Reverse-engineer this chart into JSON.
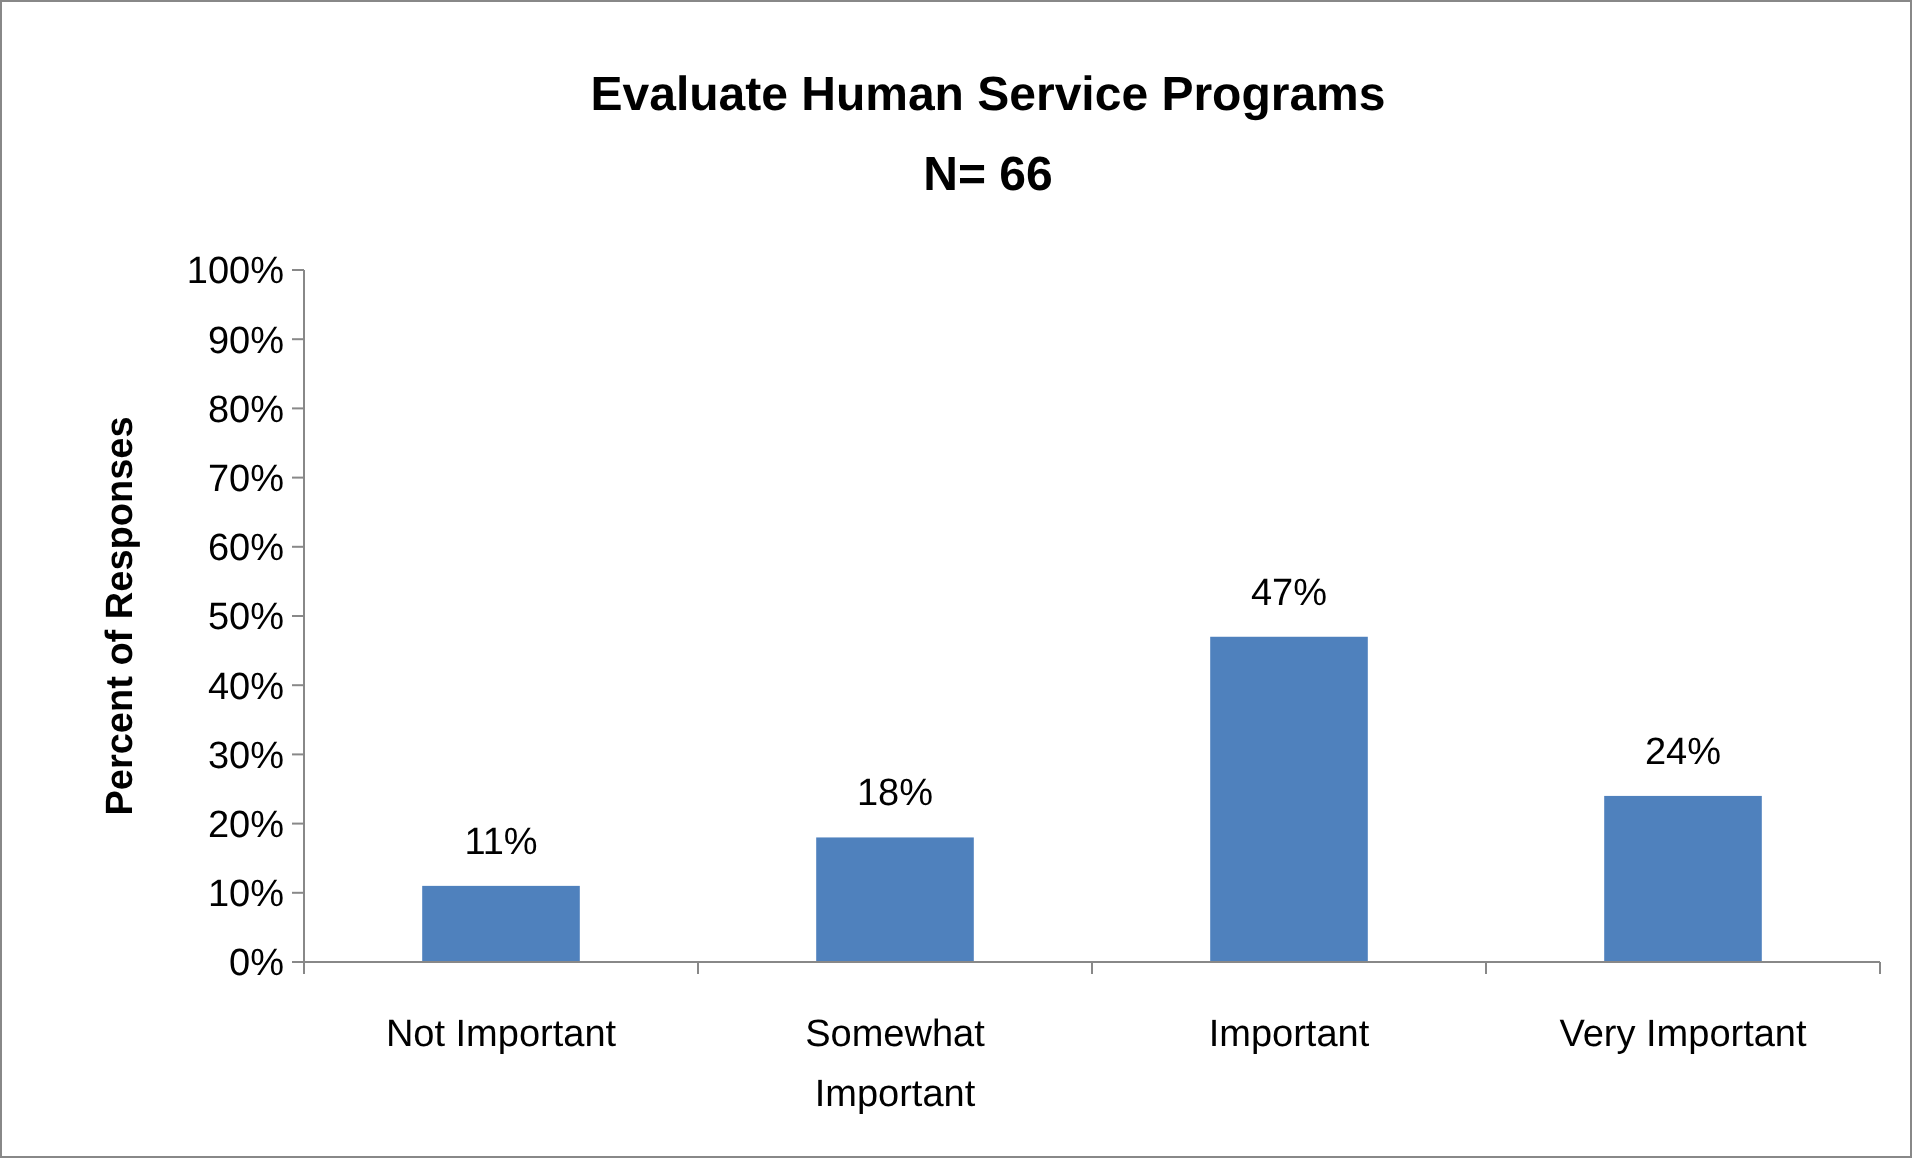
{
  "chart_data": {
    "type": "bar",
    "title": "Evaluate Human Service Programs",
    "subtitle": "N= 66",
    "ylabel": "Percent of Responses",
    "categories": [
      "Not Important",
      "Somewhat Important",
      "Important",
      "Very Important"
    ],
    "values": [
      11,
      18,
      47,
      24
    ],
    "color": "#4f81bd",
    "value_labels": [
      "11%",
      "18%",
      "47%",
      "24%"
    ],
    "ylim": [
      0,
      100
    ],
    "yticks": [
      {
        "value": 0,
        "label": "0%"
      },
      {
        "value": 10,
        "label": "10%"
      },
      {
        "value": 20,
        "label": "20%"
      },
      {
        "value": 30,
        "label": "30%"
      },
      {
        "value": 40,
        "label": "40%"
      },
      {
        "value": 50,
        "label": "50%"
      },
      {
        "value": 60,
        "label": "60%"
      },
      {
        "value": 70,
        "label": "70%"
      },
      {
        "value": 80,
        "label": "80%"
      },
      {
        "value": 90,
        "label": "90%"
      },
      {
        "value": 100,
        "label": "100%"
      }
    ],
    "grid": false
  }
}
